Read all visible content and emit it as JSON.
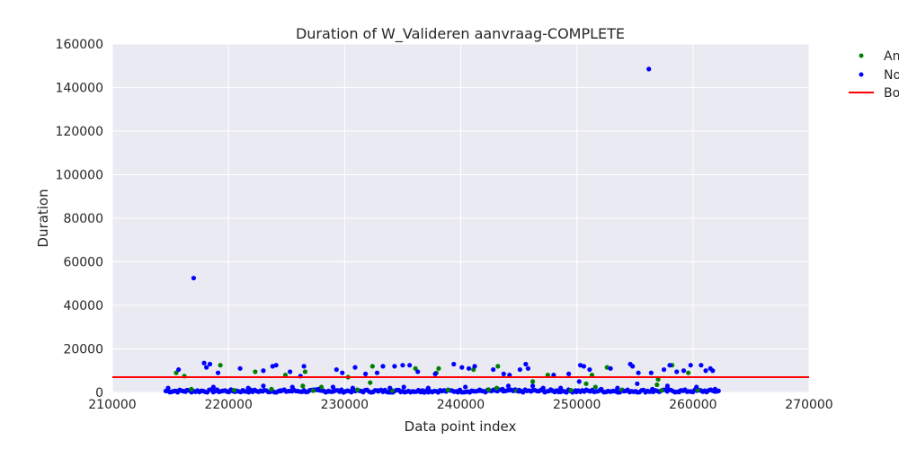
{
  "chart_data": {
    "type": "scatter",
    "title": "Duration of W_Valideren aanvraag-COMPLETE",
    "xlabel": "Data point index",
    "ylabel": "Duration",
    "xlim": [
      210000,
      270000
    ],
    "ylim": [
      0,
      160000
    ],
    "xticks": [
      "210000",
      "220000",
      "230000",
      "240000",
      "250000",
      "260000",
      "270000"
    ],
    "yticks": [
      "0",
      "20000",
      "40000",
      "60000",
      "80000",
      "100000",
      "120000",
      "140000",
      "160000"
    ],
    "grid": true,
    "legend_placement": "outside-right",
    "legend_truncated_labels": [
      "An",
      "No",
      "Bo"
    ],
    "colors": {
      "series_a": "#008000",
      "series_b": "#0000ff",
      "boundary": "#ff0000",
      "plot_background": "#eaeaf2",
      "grid": "#ffffff"
    },
    "boundary_line": {
      "y": 7000
    },
    "series": [
      {
        "color": "#008000",
        "points": [
          [
            215500,
            9000
          ],
          [
            216200,
            7500
          ],
          [
            219300,
            12500
          ],
          [
            222300,
            9500
          ],
          [
            224900,
            8000
          ],
          [
            226400,
            3000
          ],
          [
            226600,
            9500
          ],
          [
            228000,
            2500
          ],
          [
            230300,
            7000
          ],
          [
            232200,
            4500
          ],
          [
            232400,
            12000
          ],
          [
            236100,
            11000
          ],
          [
            237900,
            9000
          ],
          [
            238100,
            11000
          ],
          [
            241100,
            10500
          ],
          [
            243200,
            12000
          ],
          [
            246200,
            5000
          ],
          [
            247500,
            8000
          ],
          [
            250800,
            4000
          ],
          [
            251300,
            8000
          ],
          [
            252600,
            11500
          ],
          [
            256900,
            3500
          ],
          [
            257000,
            6000
          ],
          [
            258200,
            12500
          ],
          [
            259600,
            9000
          ],
          [
            216800,
            1500
          ],
          [
            220500,
            1000
          ],
          [
            223700,
            1500
          ],
          [
            227300,
            800
          ],
          [
            231100,
            1200
          ],
          [
            234100,
            900
          ],
          [
            238900,
            1100
          ],
          [
            242400,
            1300
          ],
          [
            244800,
            700
          ],
          [
            249500,
            1000
          ],
          [
            253900,
            1200
          ],
          [
            257300,
            900
          ],
          [
            260400,
            1100
          ],
          [
            251600,
            2500
          ],
          [
            243100,
            2000
          ]
        ]
      },
      {
        "color": "#0000ff",
        "points": [
          [
            217000,
            52500
          ],
          [
            256200,
            148500
          ],
          [
            215700,
            10500
          ],
          [
            217900,
            13500
          ],
          [
            218100,
            11500
          ],
          [
            218400,
            13000
          ],
          [
            219100,
            9000
          ],
          [
            221000,
            11000
          ],
          [
            223000,
            10000
          ],
          [
            223800,
            12000
          ],
          [
            224100,
            12500
          ],
          [
            225300,
            9500
          ],
          [
            226200,
            7500
          ],
          [
            226500,
            12000
          ],
          [
            229300,
            10500
          ],
          [
            229800,
            9000
          ],
          [
            230900,
            11500
          ],
          [
            231800,
            8500
          ],
          [
            232800,
            9000
          ],
          [
            233300,
            12000
          ],
          [
            234300,
            12000
          ],
          [
            235000,
            12500
          ],
          [
            235600,
            12500
          ],
          [
            236300,
            9500
          ],
          [
            237800,
            8500
          ],
          [
            239400,
            13000
          ],
          [
            240100,
            11500
          ],
          [
            240700,
            11000
          ],
          [
            241200,
            12000
          ],
          [
            242800,
            10500
          ],
          [
            243700,
            8500
          ],
          [
            244200,
            8000
          ],
          [
            245100,
            10500
          ],
          [
            245600,
            13000
          ],
          [
            245800,
            11000
          ],
          [
            248000,
            8000
          ],
          [
            249300,
            8500
          ],
          [
            250300,
            12500
          ],
          [
            250600,
            12000
          ],
          [
            251100,
            10500
          ],
          [
            252900,
            11000
          ],
          [
            254600,
            13000
          ],
          [
            254800,
            12000
          ],
          [
            255300,
            9000
          ],
          [
            256400,
            9000
          ],
          [
            257500,
            10500
          ],
          [
            258000,
            12500
          ],
          [
            258600,
            9500
          ],
          [
            259200,
            10000
          ],
          [
            259800,
            12500
          ],
          [
            260700,
            12500
          ],
          [
            261100,
            10000
          ],
          [
            261500,
            11000
          ],
          [
            261700,
            10000
          ],
          [
            223000,
            3000
          ],
          [
            225500,
            2500
          ],
          [
            229000,
            2500
          ],
          [
            233900,
            2000
          ],
          [
            237200,
            2000
          ],
          [
            244100,
            3000
          ],
          [
            247100,
            2000
          ],
          [
            250200,
            5000
          ],
          [
            246200,
            3000
          ],
          [
            253500,
            2000
          ],
          [
            255200,
            4000
          ],
          [
            257800,
            3000
          ],
          [
            260300,
            2500
          ],
          [
            218700,
            2500
          ],
          [
            221700,
            2000
          ],
          [
            227700,
            1500
          ],
          [
            230700,
            2000
          ],
          [
            235100,
            2500
          ],
          [
            240400,
            2500
          ],
          [
            243600,
            1500
          ],
          [
            248600,
            2000
          ],
          [
            252100,
            1500
          ],
          [
            256500,
            1500
          ],
          [
            261900,
            1500
          ],
          [
            214800,
            2000
          ],
          [
            216400,
            1000
          ],
          [
            219900,
            500
          ],
          [
            222100,
            800
          ],
          [
            224500,
            600
          ],
          [
            228600,
            700
          ],
          [
            232900,
            500
          ],
          [
            236700,
            900
          ],
          [
            239800,
            600
          ],
          [
            241600,
            800
          ],
          [
            245000,
            500
          ],
          [
            247900,
            700
          ],
          [
            249900,
            900
          ],
          [
            254100,
            600
          ],
          [
            258900,
            800
          ],
          [
            261000,
            500
          ],
          [
            262000,
            700
          ]
        ]
      }
    ]
  }
}
